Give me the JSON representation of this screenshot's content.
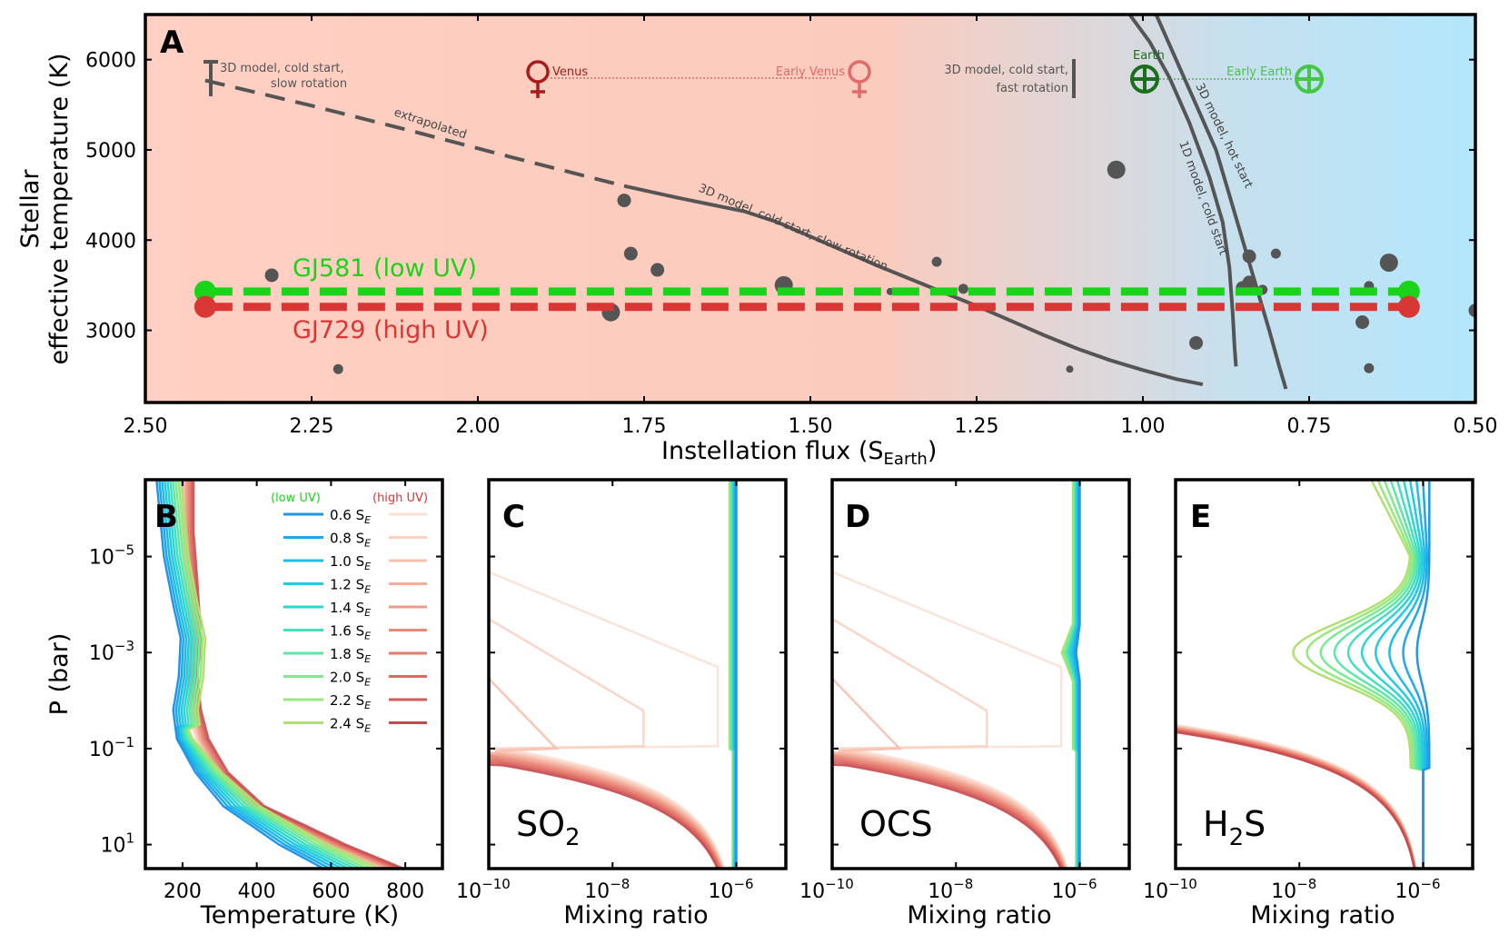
{
  "colors": {
    "low_uv_green": "#19d419",
    "high_uv_red": "#d93636",
    "planet_dot": "#555555",
    "venus_dark": "#a81c1c",
    "venus_light": "#e36a6a",
    "earth_dark": "#1b6e1b",
    "earth_light": "#46c646",
    "bg_left": "#ffd1c4",
    "bg_right": "#b5e6fb"
  },
  "chart_data": [
    {
      "id": "A",
      "type": "scatter",
      "panel_label": "A",
      "xlabel": "Instellation flux  (S",
      "xlabel_sub": "Earth",
      "xlabel_end": ")",
      "ylabel_line1": "Stellar",
      "ylabel_line2": "effective temperature  (K)",
      "xlim": [
        2.5,
        0.5
      ],
      "ylim": [
        2200,
        6500
      ],
      "xticks": [
        2.5,
        2.25,
        2.0,
        1.75,
        1.5,
        1.25,
        1.0,
        0.75,
        0.5
      ],
      "xtick_labels": [
        "2.50",
        "2.25",
        "2.00",
        "1.75",
        "1.50",
        "1.25",
        "1.00",
        "0.75",
        "0.50"
      ],
      "yticks": [
        3000,
        4000,
        5000,
        6000
      ],
      "ytick_labels": [
        "3000",
        "4000",
        "5000",
        "6000"
      ],
      "background": "horizontal gradient: red (hot side) to blue (cold side)",
      "star_tracks": [
        {
          "name": "GJ581 (low UV)",
          "teff": 3430,
          "x_range": [
            2.41,
            0.6
          ],
          "style": "dashed",
          "color": "#19d419"
        },
        {
          "name": "GJ729 (high UV)",
          "teff": 3260,
          "x_range": [
            2.41,
            0.6
          ],
          "style": "dashed",
          "color": "#d93636"
        }
      ],
      "planets": [
        {
          "x": 2.31,
          "y": 3610,
          "size": "m"
        },
        {
          "x": 2.21,
          "y": 2570,
          "size": "s"
        },
        {
          "x": 1.78,
          "y": 4440,
          "size": "m"
        },
        {
          "x": 1.77,
          "y": 3850,
          "size": "m"
        },
        {
          "x": 1.73,
          "y": 3670,
          "size": "m"
        },
        {
          "x": 1.8,
          "y": 3200,
          "size": "l"
        },
        {
          "x": 1.54,
          "y": 3500,
          "size": "l"
        },
        {
          "x": 1.38,
          "y": 3430,
          "size": "xs"
        },
        {
          "x": 1.31,
          "y": 3760,
          "size": "s"
        },
        {
          "x": 1.27,
          "y": 3460,
          "size": "s"
        },
        {
          "x": 1.11,
          "y": 2570,
          "size": "xs"
        },
        {
          "x": 1.04,
          "y": 4780,
          "size": "l"
        },
        {
          "x": 0.92,
          "y": 2860,
          "size": "m"
        },
        {
          "x": 0.84,
          "y": 3820,
          "size": "m"
        },
        {
          "x": 0.85,
          "y": 3470,
          "size": "m"
        },
        {
          "x": 0.84,
          "y": 3530,
          "size": "m"
        },
        {
          "x": 0.82,
          "y": 3450,
          "size": "s"
        },
        {
          "x": 0.8,
          "y": 3850,
          "size": "s"
        },
        {
          "x": 0.63,
          "y": 3750,
          "size": "l"
        },
        {
          "x": 0.66,
          "y": 3490,
          "size": "s"
        },
        {
          "x": 0.67,
          "y": 3090,
          "size": "m"
        },
        {
          "x": 0.66,
          "y": 2580,
          "size": "s"
        },
        {
          "x": 0.5,
          "y": 3220,
          "size": "m"
        }
      ],
      "curves": [
        {
          "name": "extrapolated",
          "style": "dashed",
          "points": [
            [
              2.41,
              5770
            ],
            [
              2.25,
              5490
            ],
            [
              2.1,
              5210
            ],
            [
              1.95,
              4920
            ],
            [
              1.78,
              4600
            ]
          ]
        },
        {
          "name": "3D model, cold start, slow rotation",
          "style": "solid",
          "points": [
            [
              1.78,
              4600
            ],
            [
              1.7,
              4470
            ],
            [
              1.6,
              4320
            ],
            [
              1.55,
              4200
            ],
            [
              1.5,
              4040
            ],
            [
              1.45,
              3880
            ],
            [
              1.4,
              3720
            ],
            [
              1.35,
              3570
            ],
            [
              1.3,
              3420
            ],
            [
              1.25,
              3270
            ],
            [
              1.2,
              3110
            ],
            [
              1.15,
              2950
            ],
            [
              1.1,
              2800
            ],
            [
              1.05,
              2670
            ],
            [
              1.0,
              2560
            ],
            [
              0.95,
              2460
            ],
            [
              0.91,
              2400
            ]
          ]
        },
        {
          "name": "1D model, cold start",
          "style": "solid",
          "points": [
            [
              1.02,
              6500
            ],
            [
              0.99,
              6200
            ],
            [
              0.96,
              5800
            ],
            [
              0.93,
              5300
            ],
            [
              0.9,
              4700
            ],
            [
              0.88,
              4200
            ],
            [
              0.87,
              3700
            ],
            [
              0.865,
              3200
            ],
            [
              0.862,
              2800
            ],
            [
              0.86,
              2600
            ]
          ]
        },
        {
          "name": "3D model, hot start",
          "style": "solid",
          "points": [
            [
              0.98,
              6500
            ],
            [
              0.95,
              6000
            ],
            [
              0.92,
              5500
            ],
            [
              0.89,
              5000
            ],
            [
              0.87,
              4500
            ],
            [
              0.85,
              4000
            ],
            [
              0.83,
              3500
            ],
            [
              0.81,
              3000
            ],
            [
              0.795,
              2600
            ],
            [
              0.785,
              2350
            ]
          ]
        }
      ],
      "range_markers": [
        {
          "label_line1": "3D model, cold start,",
          "label_line2": "slow rotation",
          "x": 2.4,
          "y_range": [
            5580,
            5980
          ]
        },
        {
          "label_line1": "3D model, cold start,",
          "label_line2": "fast rotation",
          "x": 1.1,
          "y_range": [
            5500,
            5940
          ]
        }
      ],
      "solar_bodies": [
        {
          "name": "Venus",
          "x": 1.91,
          "y": 5880,
          "symbol": "♀",
          "color": "#a81c1c"
        },
        {
          "name": "Early Venus",
          "x": 1.43,
          "y": 5880,
          "symbol": "♀",
          "color": "#e36a6a"
        },
        {
          "name": "Earth",
          "x": 1.0,
          "y": 5810,
          "symbol": "⊕",
          "color": "#1b6e1b"
        },
        {
          "name": "Early Earth",
          "x": 0.75,
          "y": 5810,
          "symbol": "⊕",
          "color": "#46c646"
        }
      ],
      "annotations": [
        {
          "text": "extrapolated"
        },
        {
          "text": "3D model, cold start,  slow rotation"
        },
        {
          "text": "1D model, cold start"
        },
        {
          "text": "3D model, hot start"
        }
      ],
      "legend_labels": [
        "GJ581 (low UV)",
        "GJ729 (high UV)"
      ]
    },
    {
      "id": "B",
      "type": "line",
      "panel_label": "B",
      "xlabel": "Temperature  (K)",
      "ylabel": "P  (bar)",
      "xlim": [
        100,
        900
      ],
      "ylim_log10": [
        -6.6,
        1.5
      ],
      "xticks": [
        200,
        400,
        600,
        800
      ],
      "xtick_labels": [
        "200",
        "400",
        "600",
        "800"
      ],
      "ytick_exponents": [
        -5,
        -3,
        -1,
        1
      ],
      "ytick_base": "10",
      "ytick_labels": [
        "−5",
        "−3",
        "−1",
        "1"
      ],
      "legend_header_low": "(low UV)",
      "legend_header_high": "(high UV)",
      "legend_entries": [
        "0.6 S",
        "0.8 S",
        "1.0 S",
        "1.2 S",
        "1.4 S",
        "1.6 S",
        "1.8 S",
        "2.0 S",
        "2.2 S",
        "2.4 S"
      ],
      "legend_subscript": "E",
      "instellations": [
        0.6,
        0.8,
        1.0,
        1.2,
        1.4,
        1.6,
        1.8,
        2.0,
        2.2,
        2.4
      ],
      "profile_low_uv": [
        [
          -6.6,
          130
        ],
        [
          -5.0,
          150
        ],
        [
          -4.0,
          175
        ],
        [
          -3.3,
          195
        ],
        [
          -2.5,
          190
        ],
        [
          -1.8,
          175
        ],
        [
          -1.2,
          185
        ],
        [
          -0.5,
          235
        ],
        [
          0.2,
          310
        ],
        [
          1.0,
          460
        ],
        [
          1.5,
          580
        ]
      ],
      "profile_high_uv": [
        [
          -6.6,
          215
        ],
        [
          -5.5,
          215
        ],
        [
          -4.5,
          225
        ],
        [
          -3.3,
          235
        ],
        [
          -2.5,
          225
        ],
        [
          -1.8,
          235
        ],
        [
          -1.2,
          255
        ],
        [
          -0.5,
          300
        ],
        [
          0.2,
          390
        ],
        [
          1.0,
          600
        ],
        [
          1.5,
          750
        ]
      ]
    },
    {
      "id": "C",
      "type": "line",
      "panel_label": "C",
      "species_main": "SO",
      "species_sub": "2",
      "xlabel": "Mixing ratio",
      "xlim_log10": [
        -10,
        -5.2
      ],
      "ylim_log10": [
        -6.6,
        1.5
      ],
      "xtick_exponents": [
        -10,
        -8,
        -6
      ],
      "xtick_base": "10",
      "xtick_labels": [
        "−10",
        "−8",
        "−6"
      ]
    },
    {
      "id": "D",
      "type": "line",
      "panel_label": "D",
      "species_main": "OCS",
      "species_sub": "",
      "xlabel": "Mixing ratio",
      "xlim_log10": [
        -10,
        -5.2
      ],
      "ylim_log10": [
        -6.6,
        1.5
      ],
      "xtick_exponents": [
        -10,
        -8,
        -6
      ],
      "xtick_base": "10",
      "xtick_labels": [
        "−10",
        "−8",
        "−6"
      ]
    },
    {
      "id": "E",
      "type": "line",
      "panel_label": "E",
      "species_main": "H",
      "species_sub": "2",
      "species_end": "S",
      "xlabel": "Mixing ratio",
      "xlim_log10": [
        -10,
        -5.2
      ],
      "ylim_log10": [
        -6.6,
        1.5
      ],
      "xtick_exponents": [
        -10,
        -8,
        -6
      ],
      "xtick_base": "10",
      "xtick_labels": [
        "−10",
        "−8",
        "−6"
      ]
    }
  ]
}
